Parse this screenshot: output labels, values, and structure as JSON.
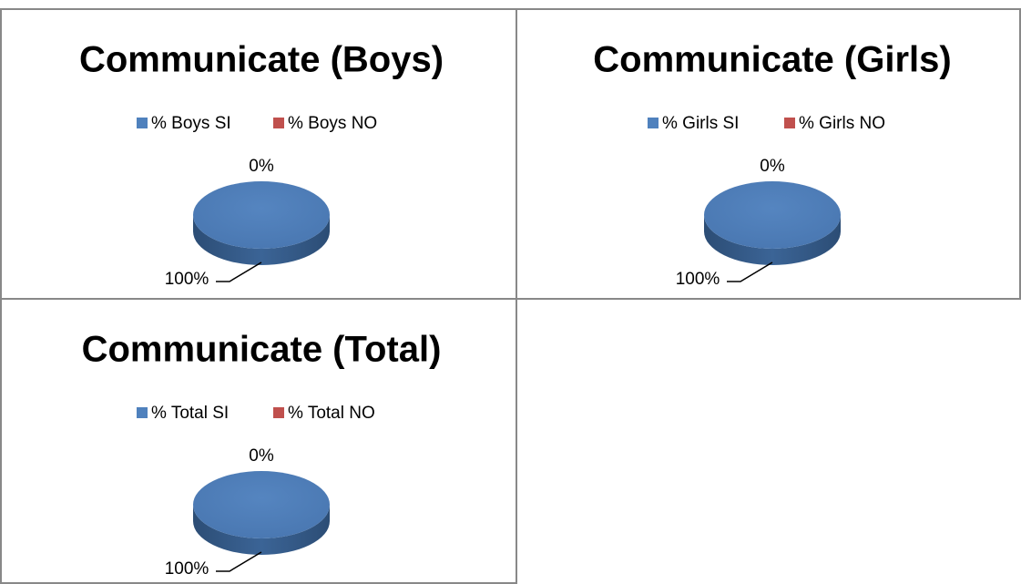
{
  "chart_data": [
    {
      "type": "pie",
      "title": "Communicate  (Boys)",
      "categories": [
        "% Boys SI",
        "% Boys NO"
      ],
      "values": [
        100,
        0
      ],
      "value_labels": [
        "100%",
        "0%"
      ],
      "colors": [
        "#4f81bd",
        "#c0504d"
      ],
      "legend": "top"
    },
    {
      "type": "pie",
      "title": "Communicate  (Girls)",
      "categories": [
        "% Girls SI",
        "% Girls NO"
      ],
      "values": [
        100,
        0
      ],
      "value_labels": [
        "100%",
        "0%"
      ],
      "colors": [
        "#4f81bd",
        "#c0504d"
      ],
      "legend": "top"
    },
    {
      "type": "pie",
      "title": "Communicate  (Total)",
      "categories": [
        "% Total SI",
        "% Total NO"
      ],
      "values": [
        100,
        0
      ],
      "value_labels": [
        "100%",
        "0%"
      ],
      "colors": [
        "#4f81bd",
        "#c0504d"
      ],
      "legend": "top"
    }
  ]
}
